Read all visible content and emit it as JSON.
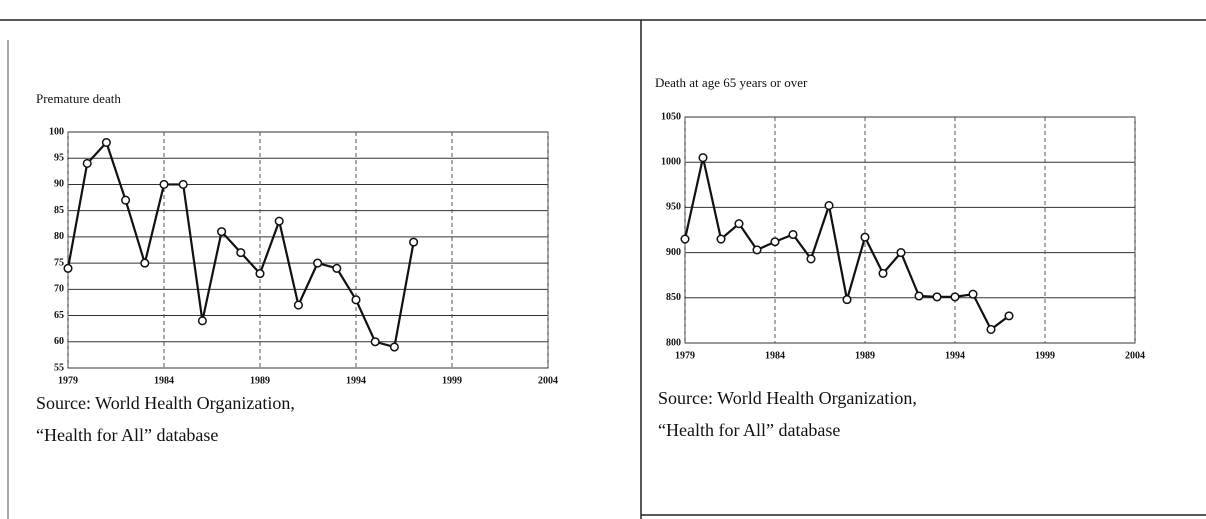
{
  "chart_data": [
    {
      "type": "line",
      "title": "Premature death",
      "x": [
        1979,
        1980,
        1981,
        1982,
        1983,
        1984,
        1985,
        1986,
        1987,
        1988,
        1989,
        1990,
        1991,
        1992,
        1993,
        1994,
        1995,
        1996,
        1997
      ],
      "series": [
        {
          "color": "#111111",
          "values": [
            74,
            94,
            98,
            87,
            75,
            90,
            90,
            64,
            81,
            77,
            73,
            83,
            67,
            75,
            74,
            68,
            60,
            59,
            79
          ]
        }
      ],
      "xlim": [
        1979,
        2004
      ],
      "xticks": [
        1979,
        1984,
        1989,
        1994,
        1999,
        2004
      ],
      "ylim": [
        55,
        100
      ],
      "yticks": [
        55,
        60,
        65,
        70,
        75,
        80,
        85,
        90,
        95,
        100
      ],
      "grid": true,
      "source": [
        "Source:  World Health Organization,",
        "“Health for All” database"
      ]
    },
    {
      "type": "line",
      "title": "Death at age 65 years or over",
      "x": [
        1979,
        1980,
        1981,
        1982,
        1983,
        1984,
        1985,
        1986,
        1987,
        1988,
        1989,
        1990,
        1991,
        1992,
        1993,
        1994,
        1995,
        1996,
        1997
      ],
      "series": [
        {
          "color": "#111111",
          "values": [
            915,
            1005,
            915,
            932,
            903,
            912,
            920,
            893,
            952,
            848,
            917,
            877,
            900,
            852,
            851,
            851,
            854,
            815,
            830
          ]
        }
      ],
      "xlim": [
        1979,
        2004
      ],
      "xticks": [
        1979,
        1984,
        1989,
        1994,
        1999,
        2004
      ],
      "ylim": [
        800,
        1050
      ],
      "yticks": [
        800,
        850,
        900,
        950,
        1000,
        1050
      ],
      "grid": true,
      "source": [
        "Source:  World Health Organization,",
        "“Health for All” database"
      ]
    }
  ]
}
